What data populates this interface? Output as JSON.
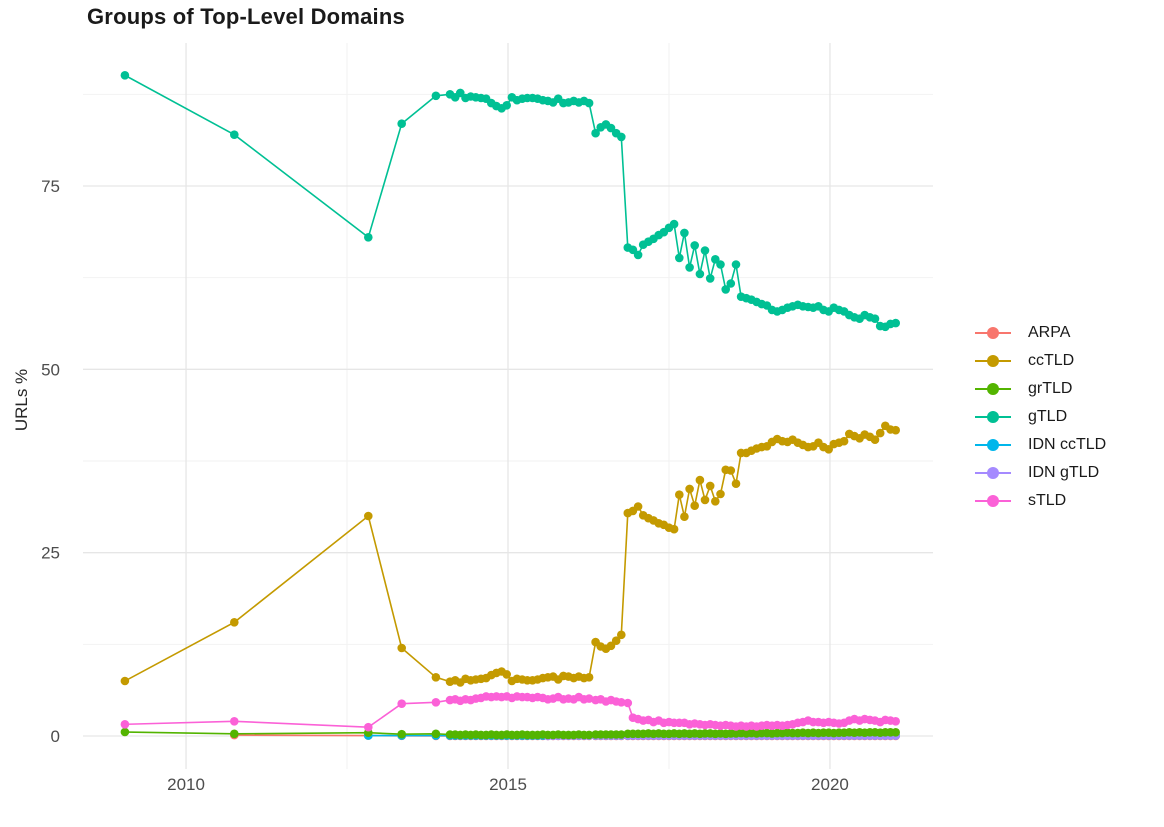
{
  "title": "Groups of Top-Level Domains",
  "chart_data": {
    "type": "line",
    "title": "Groups of Top-Level Domains",
    "xlabel": "",
    "ylabel": "URLs %",
    "grid": true,
    "legend_position": "right",
    "x_range": [
      2008.4,
      2021.6
    ],
    "y_range": [
      -4.5,
      94.5
    ],
    "x_ticks": [
      {
        "label": "2010",
        "value": 2010
      },
      {
        "label": "2015",
        "value": 2015
      },
      {
        "label": "2020",
        "value": 2020
      }
    ],
    "y_ticks": [
      {
        "label": "0",
        "value": 0
      },
      {
        "label": "25",
        "value": 25
      },
      {
        "label": "50",
        "value": 50
      },
      {
        "label": "75",
        "value": 75
      }
    ],
    "x_minor": [
      2012.5,
      2017.5
    ],
    "y_minor": [
      12.5,
      37.5,
      62.5,
      87.5
    ],
    "draw_order": [
      "ARPA",
      "IDN ccTLD",
      "IDN gTLD",
      "grTLD",
      "ccTLD",
      "gTLD",
      "sTLD"
    ],
    "x": [
      2009.05,
      2010.75,
      2012.83,
      2013.35,
      2013.88,
      2014.1,
      2014.18,
      2014.26,
      2014.34,
      2014.42,
      2014.5,
      2014.58,
      2014.66,
      2014.74,
      2014.82,
      2014.9,
      2014.98,
      2015.06,
      2015.14,
      2015.22,
      2015.3,
      2015.38,
      2015.46,
      2015.54,
      2015.62,
      2015.7,
      2015.78,
      2015.86,
      2015.94,
      2016.02,
      2016.1,
      2016.18,
      2016.26,
      2016.36,
      2016.44,
      2016.52,
      2016.6,
      2016.68,
      2016.76,
      2016.86,
      2016.94,
      2017.02,
      2017.1,
      2017.18,
      2017.26,
      2017.34,
      2017.42,
      2017.5,
      2017.58,
      2017.66,
      2017.74,
      2017.82,
      2017.9,
      2017.98,
      2018.06,
      2018.14,
      2018.22,
      2018.3,
      2018.38,
      2018.46,
      2018.54,
      2018.62,
      2018.7,
      2018.78,
      2018.86,
      2018.94,
      2019.02,
      2019.1,
      2019.18,
      2019.26,
      2019.34,
      2019.42,
      2019.5,
      2019.58,
      2019.66,
      2019.74,
      2019.82,
      2019.9,
      2019.98,
      2020.06,
      2020.14,
      2020.22,
      2020.3,
      2020.38,
      2020.46,
      2020.54,
      2020.62,
      2020.7,
      2020.78,
      2020.86,
      2020.94,
      2021.02
    ],
    "series": [
      {
        "name": "ARPA",
        "color": "#F8766D",
        "values": [
          null,
          0.12,
          0.06,
          0.03,
          0.02,
          0.02,
          0.02,
          0.02,
          0.02,
          0.02,
          0.02,
          0.02,
          0.02,
          0.02,
          0.02,
          0.02,
          0.02,
          0.02,
          0.02,
          0.02,
          0.02,
          0.02,
          0.02,
          0.02,
          0.02,
          0.02,
          0.02,
          0.02,
          0.02,
          0.02,
          0.02,
          0.02,
          0.02,
          0.02,
          0.02,
          0.02,
          0.02,
          0.02,
          0.02,
          0.02,
          0.02,
          0.02,
          0.02,
          0.02,
          0.02,
          0.02,
          0.02,
          0.02,
          0.02,
          0.02,
          0.02,
          0.02,
          0.02,
          0.02,
          0.02,
          0.02,
          0.02,
          0.02,
          0.02,
          0.02,
          0.02,
          0.02,
          0.02,
          0.02,
          0.02,
          0.02,
          0.02,
          0.02,
          0.02,
          0.02,
          0.02,
          0.02,
          0.02,
          0.02,
          0.02,
          0.02,
          0.02,
          0.02,
          0.02,
          0.02,
          0.02,
          0.02,
          0.02,
          0.02,
          0.02,
          0.02,
          0.02,
          0.02,
          0.02,
          0.02,
          0.02,
          0.02
        ]
      },
      {
        "name": "ccTLD",
        "color": "#C49A00",
        "values": [
          7.5,
          15.5,
          30.0,
          12.0,
          8.0,
          7.4,
          7.6,
          7.3,
          7.8,
          7.6,
          7.7,
          7.8,
          7.9,
          8.3,
          8.6,
          8.8,
          8.4,
          7.5,
          7.8,
          7.7,
          7.6,
          7.6,
          7.7,
          7.9,
          8.0,
          8.1,
          7.7,
          8.2,
          8.1,
          7.9,
          8.1,
          7.9,
          8.0,
          12.8,
          12.2,
          11.9,
          12.3,
          13.0,
          13.8,
          30.4,
          30.7,
          31.3,
          30.1,
          29.7,
          29.4,
          29.0,
          28.8,
          28.4,
          28.2,
          32.9,
          29.9,
          33.7,
          31.4,
          34.9,
          32.2,
          34.1,
          32.0,
          33.0,
          36.3,
          36.2,
          34.4,
          38.6,
          38.6,
          38.9,
          39.2,
          39.4,
          39.5,
          40.1,
          40.5,
          40.2,
          40.1,
          40.4,
          40.0,
          39.7,
          39.4,
          39.5,
          40.0,
          39.4,
          39.1,
          39.8,
          40.0,
          40.2,
          41.2,
          40.9,
          40.6,
          41.1,
          40.8,
          40.4,
          41.3,
          42.3,
          41.8,
          41.7
        ]
      },
      {
        "name": "grTLD",
        "color": "#53B400",
        "values": [
          0.55,
          0.3,
          0.45,
          0.25,
          0.3,
          0.2,
          0.2,
          0.15,
          0.2,
          0.15,
          0.2,
          0.15,
          0.15,
          0.2,
          0.15,
          0.15,
          0.2,
          0.15,
          0.15,
          0.2,
          0.15,
          0.15,
          0.15,
          0.2,
          0.15,
          0.15,
          0.2,
          0.15,
          0.15,
          0.15,
          0.2,
          0.15,
          0.15,
          0.2,
          0.2,
          0.2,
          0.2,
          0.2,
          0.2,
          0.3,
          0.3,
          0.3,
          0.3,
          0.35,
          0.3,
          0.35,
          0.3,
          0.3,
          0.35,
          0.3,
          0.35,
          0.3,
          0.35,
          0.3,
          0.35,
          0.35,
          0.3,
          0.35,
          0.3,
          0.35,
          0.35,
          0.4,
          0.35,
          0.4,
          0.35,
          0.4,
          0.4,
          0.35,
          0.4,
          0.4,
          0.45,
          0.4,
          0.4,
          0.45,
          0.4,
          0.45,
          0.4,
          0.45,
          0.45,
          0.4,
          0.45,
          0.45,
          0.5,
          0.45,
          0.5,
          0.45,
          0.5,
          0.5,
          0.45,
          0.5,
          0.5,
          0.5
        ]
      },
      {
        "name": "gTLD",
        "color": "#00C094",
        "values": [
          90.1,
          82.0,
          68.0,
          83.5,
          87.3,
          87.5,
          87.1,
          87.7,
          87.0,
          87.2,
          87.1,
          87.0,
          86.9,
          86.3,
          85.9,
          85.6,
          86.0,
          87.1,
          86.7,
          86.9,
          87.0,
          87.0,
          86.9,
          86.7,
          86.6,
          86.4,
          86.9,
          86.3,
          86.4,
          86.6,
          86.4,
          86.6,
          86.3,
          82.2,
          83.0,
          83.4,
          82.9,
          82.2,
          81.7,
          66.6,
          66.3,
          65.6,
          67.0,
          67.4,
          67.8,
          68.3,
          68.7,
          69.3,
          69.8,
          65.2,
          68.6,
          63.9,
          66.9,
          63.0,
          66.2,
          62.4,
          65.0,
          64.3,
          60.9,
          61.7,
          64.3,
          59.9,
          59.7,
          59.5,
          59.2,
          58.9,
          58.7,
          58.1,
          57.9,
          58.1,
          58.4,
          58.6,
          58.8,
          58.6,
          58.5,
          58.4,
          58.6,
          58.1,
          57.9,
          58.4,
          58.1,
          57.9,
          57.4,
          57.1,
          56.9,
          57.4,
          57.1,
          56.9,
          55.9,
          55.8,
          56.2,
          56.3
        ]
      },
      {
        "name": "IDN ccTLD",
        "color": "#00B6EB",
        "values": [
          null,
          null,
          0.05,
          0.06,
          0.05,
          0.06,
          0.06,
          0.06,
          0.06,
          0.06,
          0.06,
          0.06,
          0.06,
          0.06,
          0.06,
          0.06,
          0.06,
          0.06,
          0.06,
          0.06,
          0.06,
          0.06,
          0.06,
          0.06,
          0.06,
          0.06,
          0.06,
          0.06,
          0.06,
          0.06,
          0.06,
          0.06,
          0.06,
          0.06,
          0.06,
          0.06,
          0.06,
          0.06,
          0.06,
          0.06,
          0.07,
          0.07,
          0.07,
          0.07,
          0.07,
          0.07,
          0.07,
          0.07,
          0.07,
          0.07,
          0.07,
          0.07,
          0.07,
          0.07,
          0.07,
          0.07,
          0.07,
          0.07,
          0.07,
          0.07,
          0.07,
          0.07,
          0.07,
          0.07,
          0.07,
          0.07,
          0.07,
          0.07,
          0.07,
          0.07,
          0.07,
          0.07,
          0.07,
          0.07,
          0.07,
          0.07,
          0.07,
          0.07,
          0.07,
          0.07,
          0.07,
          0.07,
          0.07,
          0.07,
          0.07,
          0.07,
          0.07,
          0.07,
          0.07,
          0.07,
          0.07,
          0.07
        ]
      },
      {
        "name": "IDN gTLD",
        "color": "#A58AFF",
        "values": [
          null,
          null,
          null,
          null,
          null,
          null,
          null,
          null,
          null,
          null,
          null,
          null,
          null,
          null,
          null,
          null,
          null,
          null,
          null,
          null,
          null,
          null,
          null,
          null,
          0.02,
          0.03,
          0.03,
          0.04,
          0.05,
          0.05,
          0.05,
          0.05,
          0.05,
          0.05,
          0.05,
          0.05,
          0.05,
          0.05,
          0.05,
          0.05,
          0.06,
          0.06,
          0.06,
          0.06,
          0.06,
          0.06,
          0.06,
          0.06,
          0.06,
          0.06,
          0.06,
          0.06,
          0.06,
          0.06,
          0.06,
          0.06,
          0.06,
          0.06,
          0.06,
          0.06,
          0.06,
          0.06,
          0.06,
          0.06,
          0.06,
          0.06,
          0.06,
          0.06,
          0.06,
          0.06,
          0.06,
          0.06,
          0.06,
          0.06,
          0.06,
          0.06,
          0.06,
          0.06,
          0.06,
          0.06,
          0.06,
          0.06,
          0.06,
          0.06,
          0.06,
          0.06,
          0.06,
          0.06,
          0.06,
          0.06,
          0.06,
          0.06
        ]
      },
      {
        "name": "sTLD",
        "color": "#FB61D7",
        "values": [
          1.6,
          2.0,
          1.2,
          4.4,
          4.6,
          4.9,
          5.0,
          4.8,
          5.0,
          4.9,
          5.1,
          5.2,
          5.4,
          5.3,
          5.4,
          5.3,
          5.4,
          5.2,
          5.4,
          5.3,
          5.3,
          5.2,
          5.3,
          5.2,
          5.0,
          5.1,
          5.3,
          5.0,
          5.1,
          5.0,
          5.3,
          5.0,
          5.1,
          4.9,
          5.0,
          4.7,
          4.9,
          4.7,
          4.6,
          4.5,
          2.5,
          2.3,
          2.1,
          2.2,
          1.9,
          2.1,
          1.8,
          1.9,
          1.8,
          1.8,
          1.8,
          1.6,
          1.7,
          1.6,
          1.5,
          1.6,
          1.5,
          1.4,
          1.5,
          1.4,
          1.3,
          1.4,
          1.3,
          1.4,
          1.3,
          1.4,
          1.5,
          1.4,
          1.5,
          1.4,
          1.5,
          1.6,
          1.8,
          1.9,
          2.1,
          1.9,
          1.9,
          1.8,
          1.9,
          1.8,
          1.7,
          1.8,
          2.1,
          2.3,
          2.1,
          2.3,
          2.2,
          2.1,
          1.9,
          2.2,
          2.1,
          2.0
        ]
      }
    ]
  }
}
